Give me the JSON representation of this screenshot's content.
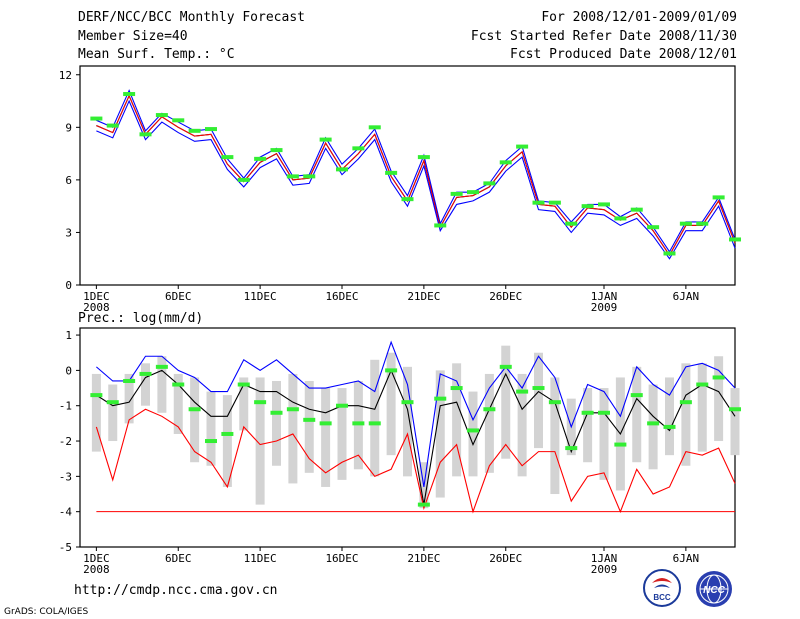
{
  "header": {
    "title": "DERF/NCC/BCC Monthly Forecast",
    "member_size": "Member Size=40",
    "variable": "Mean Surf. Temp.: °C",
    "period": "For 2008/12/01-2009/01/09",
    "fcst_started": "Fcst Started Refer Date 2008/11/30",
    "fcst_produced": "Fcst Produced Date 2008/12/01"
  },
  "footer": {
    "url": "http://cmdp.ncc.cma.gov.cn",
    "grads": "GrADS: COLA/IGES",
    "logo1_text": "BCC",
    "logo2_text": "NCC"
  },
  "colors": {
    "spread_top": "#0000ff",
    "spread_bottom": "#0000ff",
    "mean": "#000000",
    "member": "#ff0000",
    "obs": "#33ee33",
    "bar": "#d3d3d3"
  },
  "chart_data": [
    {
      "type": "line",
      "title": "Mean Surf. Temp.: °C",
      "x_ticks": [
        {
          "day": 1,
          "label": "1DEC",
          "sub": "2008"
        },
        {
          "day": 6,
          "label": "6DEC"
        },
        {
          "day": 11,
          "label": "11DEC"
        },
        {
          "day": 16,
          "label": "16DEC"
        },
        {
          "day": 21,
          "label": "21DEC"
        },
        {
          "day": 26,
          "label": "26DEC"
        },
        {
          "day": 32,
          "label": "1JAN",
          "sub": "2009"
        },
        {
          "day": 37,
          "label": "6JAN"
        }
      ],
      "xlim": [
        0,
        40
      ],
      "ylim": [
        0,
        12.5
      ],
      "y_ticks": [
        0,
        3,
        6,
        9,
        12
      ],
      "days": [
        1,
        2,
        3,
        4,
        5,
        6,
        7,
        8,
        9,
        10,
        11,
        12,
        13,
        14,
        15,
        16,
        17,
        18,
        19,
        20,
        21,
        22,
        23,
        24,
        25,
        26,
        27,
        28,
        29,
        30,
        31,
        32,
        33,
        34,
        35,
        36,
        37,
        38,
        39,
        40
      ],
      "series": [
        {
          "name": "upper",
          "values": [
            9.4,
            9.0,
            11.1,
            8.8,
            9.8,
            9.3,
            8.8,
            8.9,
            7.2,
            6.1,
            7.3,
            7.8,
            6.2,
            6.3,
            8.4,
            6.9,
            7.8,
            8.9,
            6.5,
            5.1,
            7.4,
            3.5,
            5.3,
            5.3,
            5.8,
            7.1,
            7.9,
            4.8,
            4.7,
            3.6,
            4.6,
            4.6,
            3.9,
            4.4,
            3.3,
            1.9,
            3.6,
            3.6,
            5.0,
            2.6
          ]
        },
        {
          "name": "mean",
          "values": [
            9.1,
            8.7,
            10.8,
            8.6,
            9.6,
            9.0,
            8.5,
            8.6,
            6.9,
            5.9,
            7.0,
            7.5,
            6.0,
            6.1,
            8.1,
            6.6,
            7.5,
            8.6,
            6.2,
            4.8,
            7.1,
            3.3,
            5.0,
            5.1,
            5.6,
            6.8,
            7.6,
            4.6,
            4.5,
            3.3,
            4.4,
            4.3,
            3.7,
            4.1,
            3.1,
            1.7,
            3.4,
            3.4,
            4.8,
            2.4
          ]
        },
        {
          "name": "lower",
          "values": [
            8.8,
            8.4,
            10.5,
            8.3,
            9.3,
            8.7,
            8.2,
            8.3,
            6.6,
            5.6,
            6.7,
            7.2,
            5.7,
            5.8,
            7.8,
            6.3,
            7.2,
            8.3,
            5.9,
            4.5,
            6.8,
            3.1,
            4.6,
            4.8,
            5.3,
            6.5,
            7.3,
            4.3,
            4.2,
            3.0,
            4.1,
            4.0,
            3.4,
            3.8,
            2.8,
            1.5,
            3.1,
            3.1,
            4.5,
            2.1
          ]
        }
      ],
      "obs": [
        9.5,
        9.1,
        10.9,
        8.6,
        9.7,
        9.4,
        8.8,
        8.9,
        7.3,
        6.0,
        7.2,
        7.7,
        6.2,
        6.2,
        8.3,
        6.6,
        7.8,
        9.0,
        6.4,
        4.9,
        7.3,
        3.4,
        5.2,
        5.3,
        5.8,
        7.0,
        7.9,
        4.7,
        4.7,
        3.5,
        4.5,
        4.6,
        3.8,
        4.3,
        3.3,
        1.8,
        3.5,
        3.5,
        5.0,
        2.6
      ]
    },
    {
      "type": "line",
      "title": "Prec.: log(mm/d)",
      "x_ticks": [
        {
          "day": 1,
          "label": "1DEC",
          "sub": "2008"
        },
        {
          "day": 6,
          "label": "6DEC"
        },
        {
          "day": 11,
          "label": "11DEC"
        },
        {
          "day": 16,
          "label": "16DEC"
        },
        {
          "day": 21,
          "label": "21DEC"
        },
        {
          "day": 26,
          "label": "26DEC"
        },
        {
          "day": 32,
          "label": "1JAN",
          "sub": "2009"
        },
        {
          "day": 37,
          "label": "6JAN"
        }
      ],
      "xlim": [
        0,
        40
      ],
      "ylim": [
        -5,
        1.2
      ],
      "y_ticks": [
        -5,
        -4,
        -3,
        -2,
        -1,
        0,
        1
      ],
      "days": [
        1,
        2,
        3,
        4,
        5,
        6,
        7,
        8,
        9,
        10,
        11,
        12,
        13,
        14,
        15,
        16,
        17,
        18,
        19,
        20,
        21,
        22,
        23,
        24,
        25,
        26,
        27,
        28,
        29,
        30,
        31,
        32,
        33,
        34,
        35,
        36,
        37,
        38,
        39,
        40
      ],
      "bars": [
        [
          -2.3,
          -0.1
        ],
        [
          -2.0,
          -0.4
        ],
        [
          -1.5,
          -0.1
        ],
        [
          -1.0,
          0.2
        ],
        [
          -1.2,
          0.4
        ],
        [
          -1.8,
          -0.1
        ],
        [
          -2.6,
          -0.2
        ],
        [
          -2.7,
          -0.6
        ],
        [
          -3.3,
          -0.7
        ],
        [
          -1.7,
          -0.2
        ],
        [
          -3.8,
          -0.2
        ],
        [
          -2.7,
          -0.3
        ],
        [
          -3.2,
          -0.1
        ],
        [
          -2.9,
          -0.3
        ],
        [
          -3.3,
          -0.5
        ],
        [
          -3.1,
          -0.5
        ],
        [
          -2.8,
          -0.3
        ],
        [
          -3.0,
          0.3
        ],
        [
          -2.4,
          0.5
        ],
        [
          -3.0,
          0.1
        ],
        [
          -3.9,
          -2.6
        ],
        [
          -3.6,
          0.0
        ],
        [
          -3.0,
          0.2
        ],
        [
          -3.0,
          -0.6
        ],
        [
          -2.9,
          -0.1
        ],
        [
          -2.5,
          0.7
        ],
        [
          -3.0,
          -0.1
        ],
        [
          -2.2,
          0.5
        ],
        [
          -3.5,
          -0.2
        ],
        [
          -2.4,
          -0.8
        ],
        [
          -2.6,
          -0.5
        ],
        [
          -3.1,
          -0.5
        ],
        [
          -3.4,
          -0.2
        ],
        [
          -2.6,
          0.1
        ],
        [
          -2.8,
          -0.4
        ],
        [
          -2.4,
          -0.2
        ],
        [
          -2.7,
          0.2
        ],
        [
          -2.3,
          0.2
        ],
        [
          -2.0,
          0.4
        ],
        [
          -2.4,
          -0.5
        ]
      ],
      "series": [
        {
          "name": "upper",
          "values": [
            0.1,
            -0.3,
            -0.3,
            0.4,
            0.4,
            0.0,
            -0.2,
            -0.6,
            -0.6,
            0.3,
            0.0,
            0.3,
            -0.1,
            -0.5,
            -0.5,
            -0.4,
            -0.3,
            -0.6,
            0.8,
            -0.4,
            -3.3,
            -0.1,
            -0.3,
            -1.4,
            -0.5,
            0.1,
            -0.5,
            0.4,
            -0.2,
            -1.6,
            -0.4,
            -0.6,
            -1.3,
            0.1,
            -0.4,
            -0.7,
            0.1,
            0.2,
            0.0,
            -0.5
          ]
        },
        {
          "name": "mean",
          "values": [
            -0.7,
            -1.0,
            -0.9,
            -0.2,
            0.0,
            -0.4,
            -0.9,
            -1.3,
            -1.3,
            -0.4,
            -0.6,
            -0.6,
            -0.9,
            -1.1,
            -1.2,
            -1.0,
            -1.0,
            -1.1,
            0.0,
            -1.1,
            -3.8,
            -1.0,
            -0.9,
            -2.1,
            -1.1,
            -0.1,
            -1.1,
            -0.6,
            -0.9,
            -2.3,
            -1.2,
            -1.2,
            -1.8,
            -0.8,
            -1.3,
            -1.7,
            -0.7,
            -0.4,
            -0.6,
            -1.3
          ]
        },
        {
          "name": "member",
          "values": [
            -1.6,
            -3.1,
            -1.4,
            -1.1,
            -1.3,
            -1.6,
            -2.3,
            -2.6,
            -3.3,
            -1.6,
            -2.1,
            -2.0,
            -1.8,
            -2.5,
            -2.9,
            -2.6,
            -2.4,
            -3.0,
            -2.8,
            -1.8,
            -3.9,
            -2.6,
            -2.1,
            -4.0,
            -2.7,
            -2.1,
            -2.7,
            -2.3,
            -2.3,
            -3.7,
            -3.0,
            -2.9,
            -4.0,
            -2.8,
            -3.5,
            -3.3,
            -2.3,
            -2.4,
            -2.2,
            -3.2
          ]
        }
      ],
      "floor": -4,
      "obs": [
        -0.7,
        -0.9,
        -0.3,
        -0.1,
        0.1,
        -0.4,
        -1.1,
        -2.0,
        -1.8,
        -0.4,
        -0.9,
        -1.2,
        -1.1,
        -1.4,
        -1.5,
        -1.0,
        -1.5,
        -1.5,
        0.0,
        -0.9,
        -3.8,
        -0.8,
        -0.5,
        -1.7,
        -1.1,
        0.1,
        -0.6,
        -0.5,
        -0.9,
        -2.2,
        -1.2,
        -1.2,
        -2.1,
        -0.7,
        -1.5,
        -1.6,
        -0.9,
        -0.4,
        -0.2,
        -1.1
      ]
    }
  ]
}
